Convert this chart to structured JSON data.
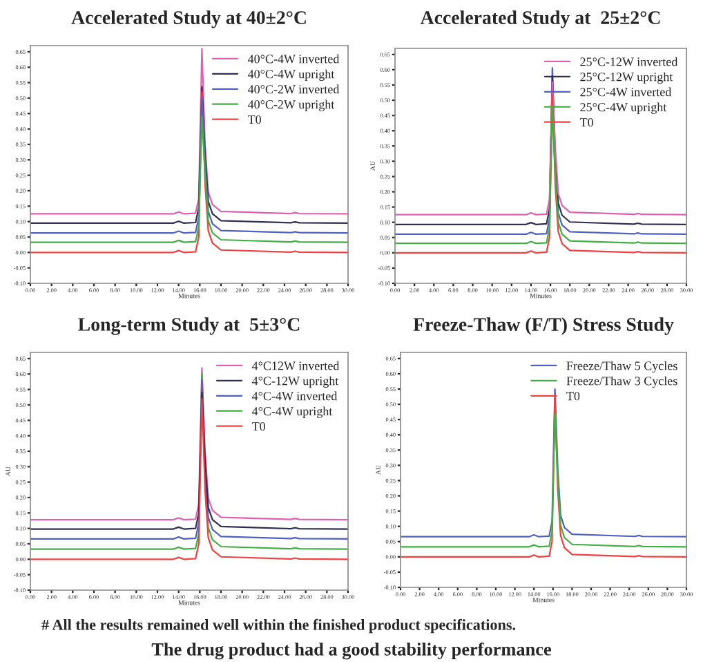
{
  "chart_data": [
    {
      "type": "line",
      "title": "Accelerated Study at 40±2°C",
      "xlabel": "Minutes",
      "legend": "top right",
      "grid": false,
      "x": [
        0,
        13.5,
        14.0,
        14.5,
        15.6,
        15.9,
        16.2,
        16.5,
        16.8,
        17.2,
        18.0,
        24.6,
        25.0,
        25.4,
        30
      ],
      "xlim": [
        0,
        30
      ],
      "xticks": [
        {
          "value": 0,
          "label": "0.00"
        },
        {
          "value": 2,
          "label": "2.00"
        },
        {
          "value": 4,
          "label": "4.00"
        },
        {
          "value": 6,
          "label": "6.00"
        },
        {
          "value": 8,
          "label": "8.00"
        },
        {
          "value": 10,
          "label": "10.00"
        },
        {
          "value": 12,
          "label": "12.00"
        },
        {
          "value": 14,
          "label": "14.00"
        },
        {
          "value": 16,
          "label": "16.00"
        },
        {
          "value": 18,
          "label": "18.00"
        },
        {
          "value": 20,
          "label": "20.00"
        },
        {
          "value": 22,
          "label": "22.00"
        },
        {
          "value": 24,
          "label": "24.00"
        },
        {
          "value": 26,
          "label": "26.00"
        },
        {
          "value": 28,
          "label": "28.00"
        },
        {
          "value": 30,
          "label": "30.00"
        }
      ],
      "ylim": [
        -0.1,
        0.67
      ],
      "yticks": [
        {
          "value": -0.1,
          "label": "-0.10"
        },
        {
          "value": -0.05,
          "label": "-0.05"
        },
        {
          "value": 0,
          "label": "0.00"
        },
        {
          "value": 0.05,
          "label": "0.05"
        },
        {
          "value": 0.1,
          "label": "0.10"
        },
        {
          "value": 0.15,
          "label": "0.15"
        },
        {
          "value": 0.2,
          "label": "0.20"
        },
        {
          "value": 0.25,
          "label": "0.25"
        },
        {
          "value": 0.3,
          "label": "0.30"
        },
        {
          "value": 0.35,
          "label": "0.35"
        },
        {
          "value": 0.4,
          "label": "0.40"
        },
        {
          "value": 0.45,
          "label": "0.45"
        },
        {
          "value": 0.5,
          "label": "0.50"
        },
        {
          "value": 0.55,
          "label": "0.55"
        },
        {
          "value": 0.6,
          "label": "0.60"
        },
        {
          "value": 0.65,
          "label": "0.65"
        }
      ],
      "series": [
        {
          "name": "40°C-4W inverted",
          "color": "#e060b0",
          "values": [
            0.125,
            0.125,
            0.131,
            0.125,
            0.127,
            0.175,
            0.66,
            0.345,
            0.195,
            0.155,
            0.133,
            0.126,
            0.129,
            0.126,
            0.125
          ]
        },
        {
          "name": "40°C-4W upright",
          "color": "#303050",
          "values": [
            0.095,
            0.095,
            0.101,
            0.095,
            0.097,
            0.145,
            0.536,
            0.315,
            0.165,
            0.125,
            0.103,
            0.096,
            0.099,
            0.096,
            0.095
          ]
        },
        {
          "name": "40°C-2W inverted",
          "color": "#5060c0",
          "values": [
            0.063,
            0.063,
            0.069,
            0.063,
            0.065,
            0.113,
            0.5,
            0.283,
            0.133,
            0.093,
            0.071,
            0.064,
            0.067,
            0.064,
            0.063
          ]
        },
        {
          "name": "40°C-2W upright",
          "color": "#40b040",
          "values": [
            0.033,
            0.033,
            0.039,
            0.033,
            0.035,
            0.083,
            0.44,
            0.253,
            0.103,
            0.063,
            0.041,
            0.034,
            0.037,
            0.034,
            0.033
          ]
        },
        {
          "name": "T0",
          "color": "#f04040",
          "values": [
            0,
            0,
            0.006,
            0,
            0.002,
            0.05,
            0.52,
            0.22,
            0.07,
            0.03,
            0.008,
            0.001,
            0.004,
            0.001,
            0
          ]
        }
      ]
    },
    {
      "type": "line",
      "title": "Accelerated Study at  25±2°C",
      "xlabel": "Minutes",
      "ylabel": "AU",
      "legend": "top right",
      "grid": false,
      "x": [
        0,
        13.5,
        14.0,
        14.5,
        15.6,
        15.9,
        16.2,
        16.5,
        16.8,
        17.2,
        18.0,
        24.6,
        25.0,
        25.4,
        30
      ],
      "xlim": [
        0,
        30
      ],
      "xticks": [
        {
          "value": 0,
          "label": "0.00"
        },
        {
          "value": 2,
          "label": "2.00"
        },
        {
          "value": 4,
          "label": "4.00"
        },
        {
          "value": 6,
          "label": "6.00"
        },
        {
          "value": 8,
          "label": "8.00"
        },
        {
          "value": 10,
          "label": "10.00"
        },
        {
          "value": 12,
          "label": "12.00"
        },
        {
          "value": 14,
          "label": "14.00"
        },
        {
          "value": 16,
          "label": "16.00"
        },
        {
          "value": 18,
          "label": "18.00"
        },
        {
          "value": 20,
          "label": "20.00"
        },
        {
          "value": 22,
          "label": "22.00"
        },
        {
          "value": 24,
          "label": "24.00"
        },
        {
          "value": 26,
          "label": "26.00"
        },
        {
          "value": 28,
          "label": "28.00"
        },
        {
          "value": 30,
          "label": "30.00"
        }
      ],
      "ylim": [
        -0.1,
        0.67
      ],
      "yticks": [
        {
          "value": -0.1,
          "label": "-0.10"
        },
        {
          "value": -0.05,
          "label": "-0.05"
        },
        {
          "value": 0,
          "label": "0.00"
        },
        {
          "value": 0.05,
          "label": "0.05"
        },
        {
          "value": 0.1,
          "label": "0.10"
        },
        {
          "value": 0.15,
          "label": "0.15"
        },
        {
          "value": 0.2,
          "label": "0.20"
        },
        {
          "value": 0.25,
          "label": "0.25"
        },
        {
          "value": 0.3,
          "label": "0.30"
        },
        {
          "value": 0.35,
          "label": "0.35"
        },
        {
          "value": 0.4,
          "label": "0.40"
        },
        {
          "value": 0.45,
          "label": "0.45"
        },
        {
          "value": 0.5,
          "label": "0.50"
        },
        {
          "value": 0.55,
          "label": "0.55"
        },
        {
          "value": 0.6,
          "label": "0.60"
        },
        {
          "value": 0.65,
          "label": "0.65"
        }
      ],
      "series": [
        {
          "name": "25°C-12W inverted",
          "color": "#e060b0",
          "values": [
            0.125,
            0.125,
            0.131,
            0.125,
            0.127,
            0.175,
            0.56,
            0.345,
            0.195,
            0.155,
            0.133,
            0.126,
            0.129,
            0.126,
            0.125
          ]
        },
        {
          "name": "25°C-12W upright",
          "color": "#303050",
          "values": [
            0.093,
            0.093,
            0.099,
            0.093,
            0.095,
            0.143,
            0.58,
            0.313,
            0.163,
            0.123,
            0.101,
            0.094,
            0.097,
            0.094,
            0.093
          ]
        },
        {
          "name": "25°C-4W inverted",
          "color": "#5060c0",
          "values": [
            0.061,
            0.061,
            0.067,
            0.061,
            0.063,
            0.111,
            0.606,
            0.281,
            0.131,
            0.091,
            0.069,
            0.062,
            0.065,
            0.062,
            0.061
          ]
        },
        {
          "name": "25°C-4W upright",
          "color": "#40b040",
          "values": [
            0.031,
            0.031,
            0.037,
            0.031,
            0.033,
            0.081,
            0.48,
            0.251,
            0.101,
            0.061,
            0.039,
            0.032,
            0.035,
            0.032,
            0.031
          ]
        },
        {
          "name": "T0",
          "color": "#f04040",
          "values": [
            0,
            0,
            0.006,
            0,
            0.002,
            0.05,
            0.516,
            0.22,
            0.07,
            0.03,
            0.008,
            0.001,
            0.004,
            0.001,
            0
          ]
        }
      ]
    },
    {
      "type": "line",
      "title": "Long-term Study at  5±3°C",
      "xlabel": "Minutes",
      "ylabel": "AU",
      "legend": "top right",
      "grid": false,
      "x": [
        0,
        13.5,
        14.0,
        14.5,
        15.6,
        15.9,
        16.2,
        16.5,
        16.8,
        17.2,
        18.0,
        24.6,
        25.0,
        25.4,
        30
      ],
      "xlim": [
        0,
        30
      ],
      "xticks": [
        {
          "value": 0,
          "label": "0.00"
        },
        {
          "value": 2,
          "label": "2.00"
        },
        {
          "value": 4,
          "label": "4.00"
        },
        {
          "value": 6,
          "label": "6.00"
        },
        {
          "value": 8,
          "label": "8.00"
        },
        {
          "value": 10,
          "label": "10.00"
        },
        {
          "value": 12,
          "label": "12.00"
        },
        {
          "value": 14,
          "label": "14.00"
        },
        {
          "value": 16,
          "label": "16.00"
        },
        {
          "value": 18,
          "label": "18.00"
        },
        {
          "value": 20,
          "label": "20.00"
        },
        {
          "value": 22,
          "label": "22.00"
        },
        {
          "value": 24,
          "label": "24.00"
        },
        {
          "value": 26,
          "label": "26.00"
        },
        {
          "value": 28,
          "label": "28.00"
        },
        {
          "value": 30,
          "label": "30.00"
        }
      ],
      "ylim": [
        -0.1,
        0.67
      ],
      "yticks": [
        {
          "value": -0.1,
          "label": "-0.10"
        },
        {
          "value": -0.05,
          "label": "-0.05"
        },
        {
          "value": 0,
          "label": "0.00"
        },
        {
          "value": 0.05,
          "label": "0.05"
        },
        {
          "value": 0.1,
          "label": "0.10"
        },
        {
          "value": 0.15,
          "label": "0.15"
        },
        {
          "value": 0.2,
          "label": "0.20"
        },
        {
          "value": 0.25,
          "label": "0.25"
        },
        {
          "value": 0.3,
          "label": "0.30"
        },
        {
          "value": 0.35,
          "label": "0.35"
        },
        {
          "value": 0.4,
          "label": "0.40"
        },
        {
          "value": 0.45,
          "label": "0.45"
        },
        {
          "value": 0.5,
          "label": "0.50"
        },
        {
          "value": 0.55,
          "label": "0.55"
        },
        {
          "value": 0.6,
          "label": "0.60"
        },
        {
          "value": 0.65,
          "label": "0.65"
        }
      ],
      "series": [
        {
          "name": "4°C12W inverted",
          "color": "#e060b0",
          "values": [
            0.128,
            0.128,
            0.134,
            0.128,
            0.13,
            0.178,
            0.62,
            0.348,
            0.198,
            0.158,
            0.136,
            0.129,
            0.132,
            0.129,
            0.128
          ]
        },
        {
          "name": "4°C-12W upright",
          "color": "#303050",
          "values": [
            0.098,
            0.098,
            0.104,
            0.098,
            0.1,
            0.148,
            0.54,
            0.318,
            0.168,
            0.128,
            0.106,
            0.099,
            0.102,
            0.099,
            0.098
          ]
        },
        {
          "name": "4°C-4W inverted",
          "color": "#5060c0",
          "values": [
            0.066,
            0.066,
            0.072,
            0.066,
            0.068,
            0.116,
            0.58,
            0.286,
            0.136,
            0.096,
            0.074,
            0.067,
            0.07,
            0.067,
            0.066
          ]
        },
        {
          "name": "4°C-4W upright",
          "color": "#40b040",
          "values": [
            0.033,
            0.033,
            0.039,
            0.033,
            0.035,
            0.083,
            0.6,
            0.253,
            0.103,
            0.063,
            0.041,
            0.034,
            0.037,
            0.034,
            0.033
          ]
        },
        {
          "name": "T0",
          "color": "#f04040",
          "values": [
            0,
            0,
            0.006,
            0,
            0.002,
            0.05,
            0.52,
            0.22,
            0.07,
            0.03,
            0.008,
            0.001,
            0.004,
            0.001,
            0
          ]
        }
      ]
    },
    {
      "type": "line",
      "title": "Freeze-Thaw (F/T) Stress Study",
      "xlabel": "Minutes",
      "ylabel": "AU",
      "legend": "top right",
      "grid": false,
      "x": [
        0,
        13.5,
        14.0,
        14.5,
        15.6,
        15.9,
        16.2,
        16.5,
        16.8,
        17.2,
        18.0,
        24.6,
        25.0,
        25.4,
        30
      ],
      "xlim": [
        0,
        30
      ],
      "xticks": [
        {
          "value": 0,
          "label": "0.00"
        },
        {
          "value": 2,
          "label": "2.00"
        },
        {
          "value": 4,
          "label": "4.00"
        },
        {
          "value": 6,
          "label": "6.00"
        },
        {
          "value": 8,
          "label": "8.00"
        },
        {
          "value": 10,
          "label": "10.00"
        },
        {
          "value": 12,
          "label": "12.00"
        },
        {
          "value": 14,
          "label": "14.00"
        },
        {
          "value": 16,
          "label": "16.00"
        },
        {
          "value": 18,
          "label": "18.00"
        },
        {
          "value": 20,
          "label": "20.00"
        },
        {
          "value": 22,
          "label": "22.00"
        },
        {
          "value": 24,
          "label": "24.00"
        },
        {
          "value": 26,
          "label": "26.00"
        },
        {
          "value": 28,
          "label": "28.00"
        },
        {
          "value": 30,
          "label": "30.00"
        }
      ],
      "ylim": [
        -0.1,
        0.67
      ],
      "yticks": [
        {
          "value": -0.1,
          "label": "-0.10"
        },
        {
          "value": -0.05,
          "label": "-0.05"
        },
        {
          "value": 0,
          "label": "0.00"
        },
        {
          "value": 0.05,
          "label": "0.05"
        },
        {
          "value": 0.1,
          "label": "0.10"
        },
        {
          "value": 0.15,
          "label": "0.15"
        },
        {
          "value": 0.2,
          "label": "0.20"
        },
        {
          "value": 0.25,
          "label": "0.25"
        },
        {
          "value": 0.3,
          "label": "0.30"
        },
        {
          "value": 0.35,
          "label": "0.35"
        },
        {
          "value": 0.4,
          "label": "0.40"
        },
        {
          "value": 0.45,
          "label": "0.45"
        },
        {
          "value": 0.5,
          "label": "0.50"
        },
        {
          "value": 0.55,
          "label": "0.55"
        },
        {
          "value": 0.6,
          "label": "0.60"
        },
        {
          "value": 0.65,
          "label": "0.65"
        }
      ],
      "series": [
        {
          "name": "Freeze/Thaw 5 Cycles",
          "color": "#5060c0",
          "values": [
            0.066,
            0.066,
            0.072,
            0.066,
            0.068,
            0.116,
            0.55,
            0.286,
            0.136,
            0.096,
            0.074,
            0.067,
            0.07,
            0.067,
            0.066
          ]
        },
        {
          "name": "Freeze/Thaw 3 Cycles",
          "color": "#40b040",
          "values": [
            0.033,
            0.033,
            0.039,
            0.033,
            0.035,
            0.083,
            0.47,
            0.253,
            0.103,
            0.063,
            0.041,
            0.034,
            0.037,
            0.034,
            0.033
          ]
        },
        {
          "name": "T0",
          "color": "#f04040",
          "values": [
            0,
            0,
            0.006,
            0,
            0.002,
            0.05,
            0.53,
            0.22,
            0.07,
            0.03,
            0.008,
            0.001,
            0.004,
            0.001,
            0
          ]
        }
      ],
      "annotations": [
        "# All the results remained well within the finished product specifications.",
        "The drug product had a good stability performance"
      ]
    }
  ]
}
